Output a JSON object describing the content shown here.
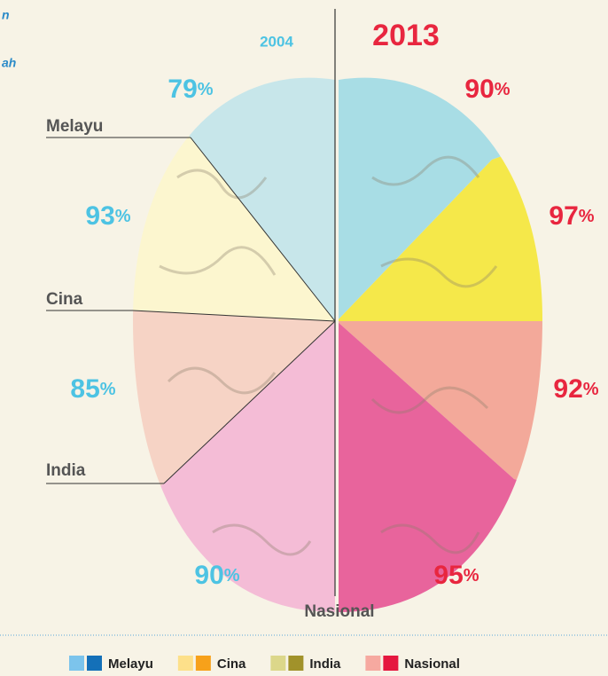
{
  "fragments": [
    "n",
    "ah"
  ],
  "years": {
    "left": "2004",
    "right": "2013"
  },
  "unit": "%",
  "groups": [
    {
      "name": "Melayu",
      "left": 79,
      "right": 90,
      "legend_colors": [
        "#7cc4ec",
        "#1470b8"
      ]
    },
    {
      "name": "Cina",
      "left": 93,
      "right": 97,
      "legend_colors": [
        "#fde08a",
        "#f7a11a"
      ]
    },
    {
      "name": "India",
      "left": 85,
      "right": 92,
      "legend_colors": [
        "#dcd78a",
        "#a1922a"
      ]
    },
    {
      "name": "Nasional",
      "left": 90,
      "right": 95,
      "legend_colors": [
        "#f6a9a0",
        "#e5173f"
      ]
    }
  ]
}
